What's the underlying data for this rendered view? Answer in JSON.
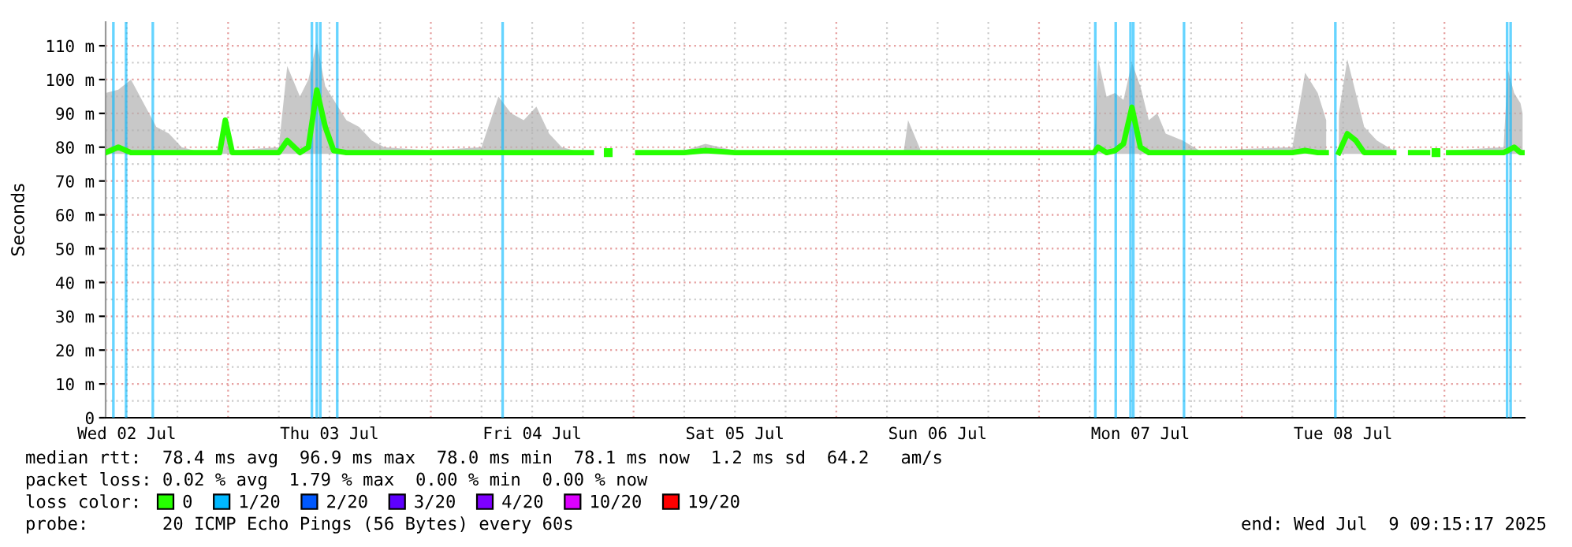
{
  "chart_data": {
    "type": "line",
    "ylabel": "Seconds",
    "xlim": [
      "2025-07-02T09:30",
      "2025-07-09T09:30"
    ],
    "xticks": [
      {
        "value": "2025-07-02T12:00",
        "label": "Wed 02 Jul"
      },
      {
        "value": "2025-07-03T12:00",
        "label": "Thu 03 Jul"
      },
      {
        "value": "2025-07-04T12:00",
        "label": "Fri 04 Jul"
      },
      {
        "value": "2025-07-05T12:00",
        "label": "Sat 05 Jul"
      },
      {
        "value": "2025-07-06T12:00",
        "label": "Sun 06 Jul"
      },
      {
        "value": "2025-07-07T12:00",
        "label": "Mon 07 Jul"
      },
      {
        "value": "2025-07-08T12:00",
        "label": "Tue 08 Jul"
      }
    ],
    "ylim": [
      0,
      117
    ],
    "yticks": [
      0,
      {
        "value": 10,
        "label": "10 m"
      },
      {
        "value": 20,
        "label": "20 m"
      },
      {
        "value": 30,
        "label": "30 m"
      },
      {
        "value": 40,
        "label": "40 m"
      },
      {
        "value": 50,
        "label": "50 m"
      },
      {
        "value": 60,
        "label": "60 m"
      },
      {
        "value": 70,
        "label": "70 m"
      },
      {
        "value": 80,
        "label": "80 m"
      },
      {
        "value": 90,
        "label": "90 m"
      },
      {
        "value": 100,
        "label": "100 m"
      },
      {
        "value": 110,
        "label": "110 m"
      }
    ],
    "grid": true,
    "legend": "bottom left",
    "legend_title": "loss color:",
    "series": [
      {
        "name": "0",
        "color": "#26ff00",
        "x": [
          "2025-07-02T09:30",
          "2025-07-02T11:00",
          "2025-07-02T12:30",
          "2025-07-02T14:00",
          "2025-07-02T15:30",
          "2025-07-02T17:00",
          "2025-07-02T18:30",
          "2025-07-02T20:00",
          "2025-07-02T23:00",
          "2025-07-02T23:40",
          "2025-07-03T00:30",
          "2025-07-03T06:00",
          "2025-07-03T07:00",
          "2025-07-03T08:30",
          "2025-07-03T09:30",
          "2025-07-03T10:30",
          "2025-07-03T11:30",
          "2025-07-03T12:30",
          "2025-07-03T14:00",
          "2025-07-03T15:30",
          "2025-07-03T17:00",
          "2025-07-03T18:30",
          "2025-07-04T00:00",
          "2025-07-04T06:00",
          "2025-07-04T08:00",
          "2025-07-04T09:30",
          "2025-07-04T11:00",
          "2025-07-04T12:30",
          "2025-07-04T14:00",
          "2025-07-04T15:30",
          "2025-07-04T17:00",
          "2025-07-04T19:00",
          "2025-07-04T20:00",
          "2025-07-04T21:00",
          "2025-07-04T22:00",
          "2025-07-05T00:30",
          "2025-07-05T06:00",
          "2025-07-05T08:30",
          "2025-07-05T12:00",
          "2025-07-06T00:00",
          "2025-07-06T08:00",
          "2025-07-06T08:30",
          "2025-07-06T10:00",
          "2025-07-07T00:00",
          "2025-07-07T06:30",
          "2025-07-07T07:00",
          "2025-07-07T08:00",
          "2025-07-07T09:00",
          "2025-07-07T10:00",
          "2025-07-07T11:00",
          "2025-07-07T12:00",
          "2025-07-07T13:00",
          "2025-07-07T14:00",
          "2025-07-07T15:00",
          "2025-07-07T17:00",
          "2025-07-07T19:00",
          "2025-07-08T06:00",
          "2025-07-08T07:30",
          "2025-07-08T09:00",
          "2025-07-08T10:00",
          "2025-07-08T10:45",
          "2025-07-08T11:30",
          "2025-07-08T12:30",
          "2025-07-08T13:30",
          "2025-07-08T14:30",
          "2025-07-08T16:00",
          "2025-07-08T18:00",
          "2025-07-08T19:00",
          "2025-07-08T20:00",
          "2025-07-08T22:00",
          "2025-07-08T22:30",
          "2025-07-08T23:00",
          "2025-07-08T23:30",
          "2025-07-09T00:30",
          "2025-07-09T07:00",
          "2025-07-09T07:30",
          "2025-07-09T08:15",
          "2025-07-09T09:00",
          "2025-07-09T09:15"
        ],
        "values": [
          78.4,
          80,
          78.4,
          78.4,
          78.4,
          78.4,
          78.4,
          78.4,
          78.4,
          88,
          78.4,
          78.4,
          82,
          78.4,
          80,
          96.9,
          86,
          79,
          78.4,
          78.4,
          78.4,
          78.4,
          78.4,
          78.4,
          78.4,
          78.4,
          78.4,
          78.4,
          78.4,
          78.4,
          78.4,
          78.4,
          null,
          78.4,
          null,
          78.4,
          78.4,
          79,
          78.4,
          78.4,
          78.4,
          78.4,
          78.4,
          78.4,
          78.4,
          80,
          78.4,
          79,
          81,
          91.8,
          80,
          78.4,
          78.4,
          78.4,
          78.4,
          78.4,
          78.4,
          79,
          78.4,
          78.4,
          null,
          78.4,
          84,
          82,
          78.4,
          78.4,
          78.4,
          null,
          78.4,
          78.4,
          null,
          78.4,
          null,
          78.4,
          78.4,
          79,
          80,
          78.4,
          78.4
        ],
        "lower": [
          78,
          78,
          78,
          78,
          78,
          78,
          78,
          78,
          78,
          78,
          78,
          78,
          78,
          78,
          78,
          78,
          78,
          78,
          78,
          78,
          78,
          78,
          78,
          78,
          78,
          78,
          78,
          78,
          78,
          78,
          78,
          78,
          null,
          null,
          null,
          78,
          78,
          78,
          78,
          78,
          78,
          78,
          78,
          78,
          78,
          78,
          78,
          78,
          78,
          78,
          78,
          78,
          78,
          78,
          78,
          78,
          78,
          78,
          78,
          78,
          null,
          78,
          78,
          78,
          78,
          78,
          78,
          null,
          78,
          78,
          null,
          null,
          null,
          78,
          78,
          78,
          78,
          78,
          78
        ],
        "upper": [
          96,
          97,
          100,
          93,
          86,
          84,
          80,
          79,
          79,
          88,
          79,
          80,
          104,
          95,
          100,
          111,
          98,
          94,
          88,
          86,
          82,
          80,
          79,
          80,
          95,
          90,
          88,
          92,
          84,
          80,
          79,
          79,
          null,
          null,
          null,
          79,
          79,
          81,
          79,
          79,
          79,
          88,
          79,
          79,
          79,
          106,
          95,
          96,
          94,
          105,
          98,
          88,
          90,
          84,
          82,
          79,
          80,
          102,
          96,
          88,
          null,
          90,
          106,
          96,
          86,
          82,
          79,
          null,
          79,
          79,
          null,
          null,
          null,
          79,
          80,
          103,
          96,
          93,
          90
        ]
      },
      {
        "name": "1/20",
        "color": "#00b8ff"
      },
      {
        "name": "2/20",
        "color": "#0059ff"
      },
      {
        "name": "3/20",
        "color": "#5e00ff"
      },
      {
        "name": "4/20",
        "color": "#7e00ff"
      },
      {
        "name": "10/20",
        "color": "#dd00ff"
      },
      {
        "name": "19/20",
        "color": "#ff0000"
      }
    ],
    "ref_lines": [
      {
        "axis": "x",
        "value": "2025-07-02T10:25",
        "color": "#00b8ff"
      },
      {
        "axis": "x",
        "value": "2025-07-02T11:55",
        "color": "#00b8ff"
      },
      {
        "axis": "x",
        "value": "2025-07-02T15:05",
        "color": "#00b8ff"
      },
      {
        "axis": "x",
        "value": "2025-07-03T09:55",
        "color": "#00b8ff"
      },
      {
        "axis": "x",
        "value": "2025-07-03T10:30",
        "color": "#00b8ff"
      },
      {
        "axis": "x",
        "value": "2025-07-03T10:55",
        "color": "#00b8ff"
      },
      {
        "axis": "x",
        "value": "2025-07-03T12:55",
        "color": "#00b8ff"
      },
      {
        "axis": "x",
        "value": "2025-07-04T08:30",
        "color": "#00b8ff"
      },
      {
        "axis": "x",
        "value": "2025-07-07T06:40",
        "color": "#00b8ff"
      },
      {
        "axis": "x",
        "value": "2025-07-07T09:05",
        "color": "#00b8ff"
      },
      {
        "axis": "x",
        "value": "2025-07-07T10:50",
        "color": "#00b8ff"
      },
      {
        "axis": "x",
        "value": "2025-07-07T11:10",
        "color": "#00b8ff"
      },
      {
        "axis": "x",
        "value": "2025-07-07T17:10",
        "color": "#00b8ff"
      },
      {
        "axis": "x",
        "value": "2025-07-08T11:05",
        "color": "#00b8ff"
      },
      {
        "axis": "x",
        "value": "2025-07-09T07:25",
        "color": "#00b8ff"
      },
      {
        "axis": "x",
        "value": "2025-07-09T07:50",
        "color": "#00b8ff"
      }
    ],
    "annotations": [
      "median rtt:  78.4 ms avg  96.9 ms max  78.0 ms min  78.1 ms now  1.2 ms sd  64.2   am/s",
      "packet loss: 0.02 % avg  1.79 % max  0.00 % min  0.00 % now",
      "probe:       20 ICMP Echo Pings (56 Bytes) every 60s",
      "end: Wed Jul  9 09:15:17 2025"
    ]
  }
}
